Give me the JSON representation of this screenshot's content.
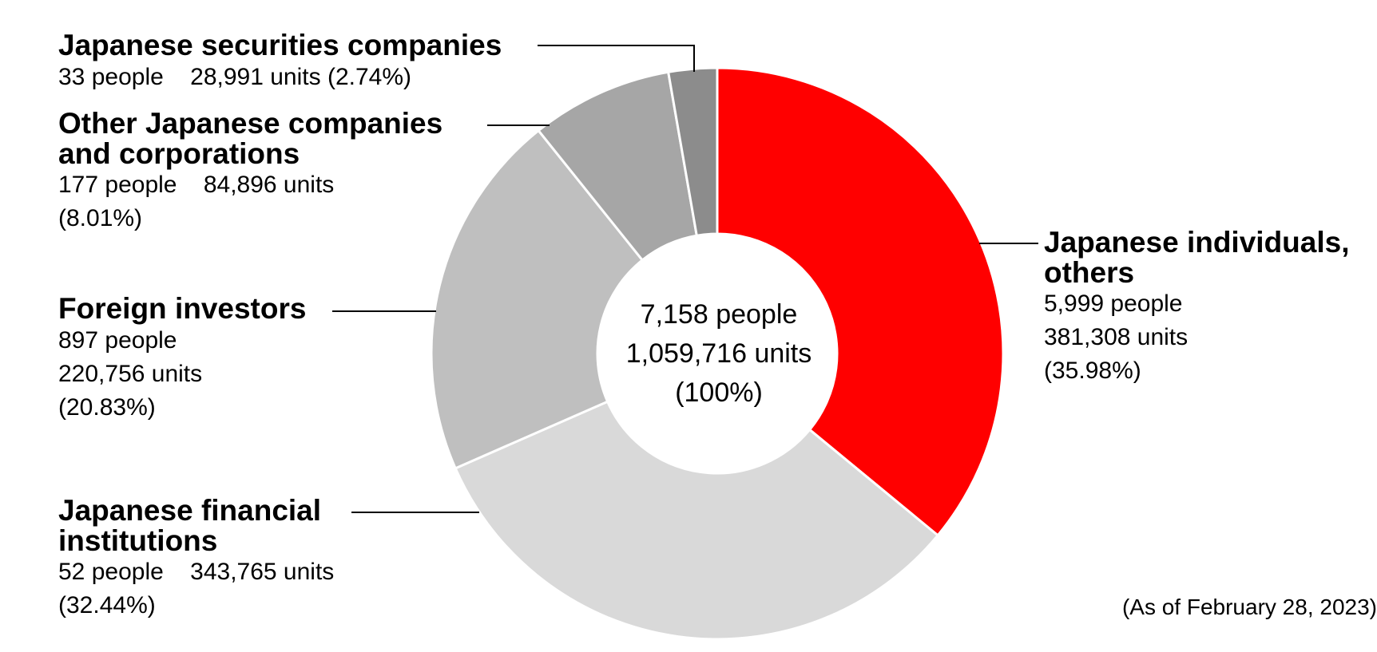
{
  "chart_data": {
    "type": "pie",
    "variant": "donut",
    "center": {
      "people": "7,158 people",
      "units": "1,059,716 units",
      "percent": "(100%)"
    },
    "slices": [
      {
        "name": "Japanese individuals, others",
        "people": "5,999 people",
        "units": "381,308 units",
        "percent_label": "(35.98%)",
        "value": 35.98,
        "color": "#ff0000"
      },
      {
        "name": "Japanese financial institutions",
        "people": "52 people",
        "units": "343,765 units",
        "percent_label": "(32.44%)",
        "value": 32.44,
        "color": "#d9d9d9"
      },
      {
        "name": "Foreign investors",
        "people": "897 people",
        "units": "220,756 units",
        "percent_label": "(20.83%)",
        "value": 20.83,
        "color": "#bfbfbf"
      },
      {
        "name": "Other Japanese companies and corporations",
        "people": "177 people",
        "units": "84,896 units",
        "percent_label": "(8.01%)",
        "value": 8.01,
        "color": "#a6a6a6"
      },
      {
        "name": "Japanese securities companies",
        "people": "33 people",
        "units": "28,991 units",
        "percent_label": "(2.74%)",
        "value": 2.74,
        "color": "#8c8c8c"
      }
    ],
    "note": "(As of February 28, 2023)"
  }
}
